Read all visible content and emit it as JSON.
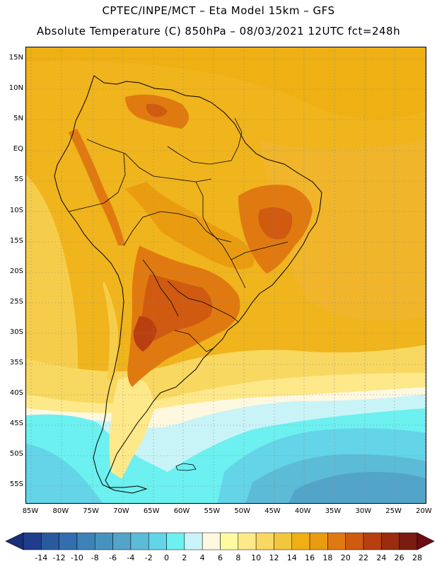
{
  "title_line1": "CPTEC/INPE/MCT – Eta Model 15km – GFS",
  "title_line2": "Absolute Temperature (C) 850hPa – 08/03/2021 12UTC fct=248h",
  "map": {
    "lat_labels": [
      "15N",
      "10N",
      "5N",
      "EQ",
      "5S",
      "10S",
      "15S",
      "20S",
      "25S",
      "30S",
      "35S",
      "40S",
      "45S",
      "50S",
      "55S"
    ],
    "lon_labels": [
      "85W",
      "80W",
      "75W",
      "70W",
      "65W",
      "60W",
      "55W",
      "50W",
      "45W",
      "40W",
      "35W",
      "30W",
      "25W",
      "20W"
    ]
  },
  "colorbar": {
    "labels": [
      "-14",
      "-12",
      "-10",
      "-8",
      "-6",
      "-4",
      "-2",
      "0",
      "2",
      "4",
      "6",
      "8",
      "10",
      "12",
      "14",
      "16",
      "18",
      "20",
      "22",
      "24",
      "26",
      "28"
    ],
    "colors": [
      "#1f3d8c",
      "#2a5a9e",
      "#336fae",
      "#3d82b8",
      "#4793c0",
      "#52a5c9",
      "#5cbbd6",
      "#64d4e8",
      "#6cf0f0",
      "#c8f4f8",
      "#fff8e0",
      "#fffaa0",
      "#fde98a",
      "#f8d860",
      "#f3c640",
      "#eeb012",
      "#ea9c10",
      "#e07a10",
      "#cf5a10",
      "#b84010",
      "#9a2c10",
      "#7a1c10"
    ]
  }
}
